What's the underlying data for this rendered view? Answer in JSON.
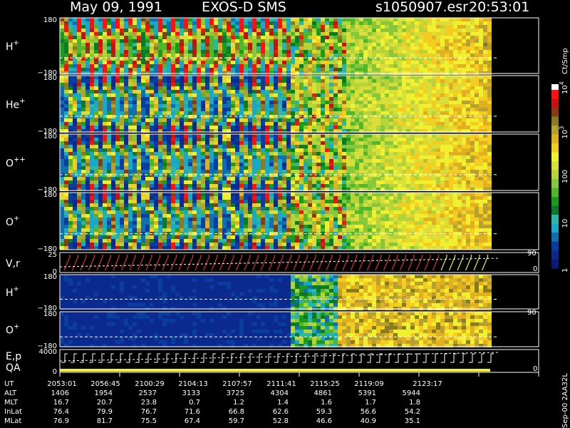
{
  "header": {
    "date": "May 09, 1991",
    "instrument": "EXOS-D SMS",
    "file": "s1050907.esr",
    "time": "20:53:01"
  },
  "chart_data": {
    "type": "heatmap",
    "panels": [
      {
        "label": "H",
        "sup": "+",
        "ylim": [
          -180,
          180
        ],
        "top_tick": "180",
        "bottom_tick": "−180"
      },
      {
        "label": "He",
        "sup": "+",
        "ylim": [
          -180,
          180
        ],
        "top_tick": "180",
        "bottom_tick": "−180"
      },
      {
        "label": "O",
        "sup": "++",
        "ylim": [
          -180,
          180
        ],
        "top_tick": "180",
        "bottom_tick": "−180"
      },
      {
        "label": "O",
        "sup": "+",
        "ylim": [
          -180,
          180
        ],
        "top_tick": "180",
        "bottom_tick": "−180"
      },
      {
        "label": "V,r",
        "sup": "",
        "top_tick": "25",
        "bottom_tick": "0",
        "right_top": "90",
        "right_bottom": "0"
      },
      {
        "label": "H",
        "sup": "+",
        "ylim": [
          -180,
          180
        ],
        "top_tick": "180",
        "bottom_tick": "−180"
      },
      {
        "label": "O",
        "sup": "+",
        "ylim": [
          -180,
          180
        ],
        "top_tick": "180",
        "bottom_tick": "−180",
        "right_top": "90"
      },
      {
        "label": "E,p",
        "label2": "QA",
        "top_tick": "4000",
        "bottom_tick": "0",
        "right_bottom": "0"
      }
    ],
    "colorbar": {
      "title": "Ct/Smp",
      "ticks": [
        {
          "label": "1",
          "value": 1
        },
        {
          "label": "10",
          "value": 10
        },
        {
          "label": "100",
          "value": 100
        },
        {
          "label": "10",
          "sup": "3",
          "value": 1000
        },
        {
          "label": "10",
          "sup": "4",
          "value": 10000
        }
      ]
    },
    "table": {
      "rows": [
        {
          "name": "UT",
          "values": [
            "2053:01",
            "2056:45",
            "2100:29",
            "2104:13",
            "2107:57",
            "2111:41",
            "2115:25",
            "2119:09",
            "2123:17"
          ]
        },
        {
          "name": "ALT",
          "values": [
            "1406",
            "1954",
            "2537",
            "3133",
            "3725",
            "4304",
            "4861",
            "5391",
            "5944"
          ]
        },
        {
          "name": "MLT",
          "values": [
            "16.7",
            "20.7",
            "23.8",
            "0.7",
            "1.2",
            "1.4",
            "1.6",
            "1.7",
            "1.8"
          ]
        },
        {
          "name": "InLat",
          "values": [
            "76.4",
            "79.9",
            "76.7",
            "71.6",
            "66.8",
            "62.6",
            "59.3",
            "56.6",
            "54.2"
          ]
        },
        {
          "name": "MLat",
          "values": [
            "76.9",
            "81.7",
            "75.5",
            "67.4",
            "59.7",
            "52.8",
            "46.6",
            "40.9",
            "35.1"
          ]
        }
      ]
    },
    "side_note": "Sep-00  2AA32L"
  }
}
